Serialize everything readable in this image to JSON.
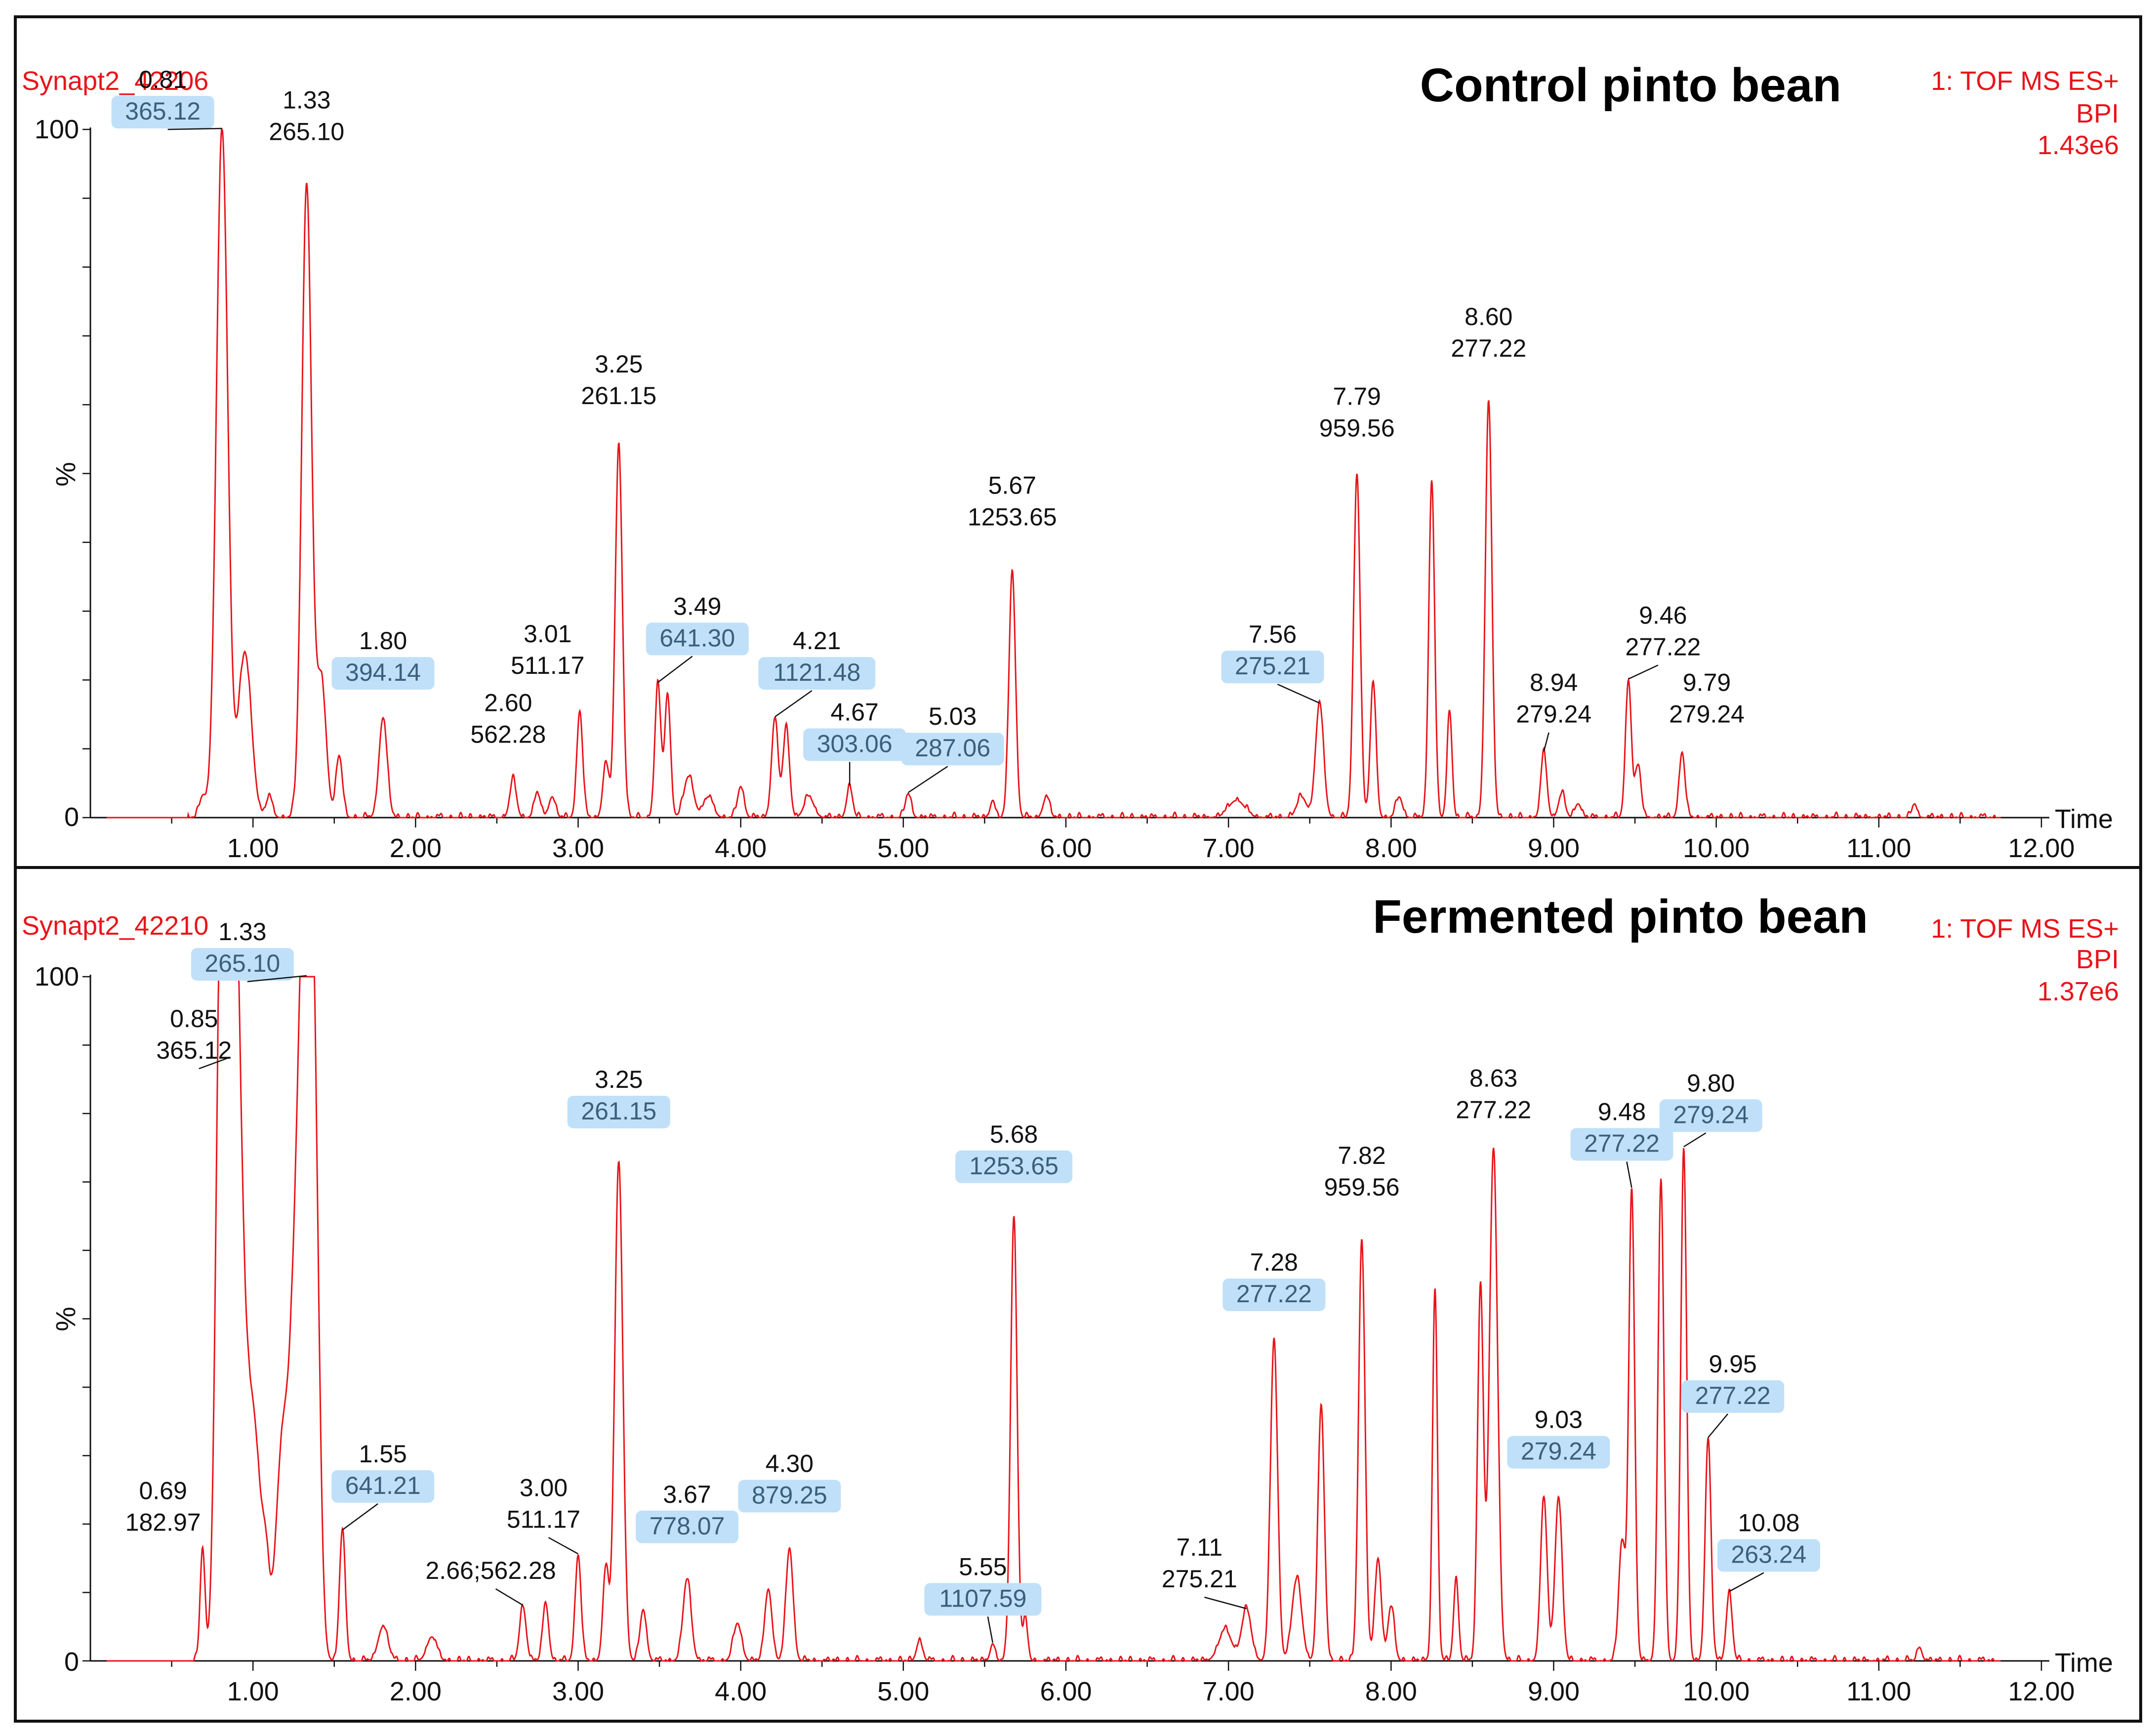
{
  "colors": {
    "trace": "#e8141b",
    "highlight": "#bfe0f8",
    "highlight_text": "#3b5f7c",
    "frame": "#111111"
  },
  "chart_data": [
    {
      "type": "line",
      "sample": "Synapt2_42206",
      "title": "Control pinto bean",
      "detector": "1: TOF MS ES+",
      "mode": "BPI",
      "intensity": "1.43e6",
      "xlabel": "Time",
      "ylabel": "%",
      "xlim": [
        0,
        12.0
      ],
      "ylim": [
        0,
        100
      ],
      "xticks": [
        "1.00",
        "2.00",
        "3.00",
        "4.00",
        "5.00",
        "6.00",
        "7.00",
        "8.00",
        "9.00",
        "10.00",
        "11.00",
        "12.00"
      ],
      "yticks": [
        "0",
        "100"
      ],
      "peaks": [
        {
          "rt": 0.81,
          "height": 100,
          "width": 0.035,
          "label": [
            "0.81",
            "365.12"
          ],
          "hl": true
        },
        {
          "rt": 1.33,
          "height": 92,
          "width": 0.03,
          "label": [
            "1.33",
            "265.10"
          ],
          "hl": false
        },
        {
          "rt": 1.8,
          "height": 14.5,
          "width": 0.025,
          "label": [
            "1.80",
            "394.14"
          ],
          "hl": true
        },
        {
          "rt": 2.6,
          "height": 5.5,
          "width": 0.02,
          "label": [
            "2.60",
            "562.28"
          ],
          "hl": false
        },
        {
          "rt": 3.01,
          "height": 15.5,
          "width": 0.018,
          "label": [
            "3.01",
            "511.17"
          ],
          "hl": false
        },
        {
          "rt": 3.25,
          "height": 54,
          "width": 0.022,
          "label": [
            "3.25",
            "261.15"
          ],
          "hl": false
        },
        {
          "rt": 3.49,
          "height": 19.5,
          "width": 0.018,
          "label": [
            "3.49",
            "641.30"
          ],
          "hl": true
        },
        {
          "rt": 4.21,
          "height": 14.5,
          "width": 0.02,
          "label": [
            "4.21",
            "1121.48"
          ],
          "hl": true
        },
        {
          "rt": 4.67,
          "height": 4.5,
          "width": 0.018,
          "label": [
            "4.67",
            "303.06"
          ],
          "hl": true
        },
        {
          "rt": 5.03,
          "height": 3.5,
          "width": 0.018,
          "label": [
            "5.03",
            "287.06"
          ],
          "hl": true
        },
        {
          "rt": 5.67,
          "height": 36,
          "width": 0.02,
          "label": [
            "5.67",
            "1253.65"
          ],
          "hl": false
        },
        {
          "rt": 7.56,
          "height": 16.5,
          "width": 0.025,
          "label": [
            "7.56",
            "275.21"
          ],
          "hl": true
        },
        {
          "rt": 7.79,
          "height": 50,
          "width": 0.02,
          "label": [
            "7.79",
            "959.56"
          ],
          "hl": false
        },
        {
          "rt": 8.6,
          "height": 60.5,
          "width": 0.02,
          "label": [
            "8.60",
            "277.22"
          ],
          "hl": false
        },
        {
          "rt": 8.94,
          "height": 9.5,
          "width": 0.018,
          "label": [
            "8.94",
            "279.24"
          ],
          "hl": false
        },
        {
          "rt": 9.46,
          "height": 20,
          "width": 0.018,
          "label": [
            "9.46",
            "277.22"
          ],
          "hl": false
        },
        {
          "rt": 9.79,
          "height": 9.5,
          "width": 0.018,
          "label": [
            "9.79",
            "279.24"
          ],
          "hl": false
        },
        {
          "rt": 0.69,
          "height": 3,
          "width": 0.02
        },
        {
          "rt": 0.95,
          "height": 24,
          "width": 0.04
        },
        {
          "rt": 1.1,
          "height": 3,
          "width": 0.02
        },
        {
          "rt": 1.42,
          "height": 20,
          "width": 0.03
        },
        {
          "rt": 1.53,
          "height": 9,
          "width": 0.02
        },
        {
          "rt": 2.75,
          "height": 3.5,
          "width": 0.02
        },
        {
          "rt": 2.84,
          "height": 3,
          "width": 0.02
        },
        {
          "rt": 3.17,
          "height": 8,
          "width": 0.018
        },
        {
          "rt": 3.55,
          "height": 18,
          "width": 0.018
        },
        {
          "rt": 3.68,
          "height": 6,
          "width": 0.03
        },
        {
          "rt": 3.8,
          "height": 3,
          "width": 0.03
        },
        {
          "rt": 4.0,
          "height": 4.5,
          "width": 0.02
        },
        {
          "rt": 4.28,
          "height": 13,
          "width": 0.02
        },
        {
          "rt": 4.42,
          "height": 3,
          "width": 0.03
        },
        {
          "rt": 5.55,
          "height": 2.5,
          "width": 0.015
        },
        {
          "rt": 5.88,
          "height": 3,
          "width": 0.02
        },
        {
          "rt": 7.05,
          "height": 2.5,
          "width": 0.05
        },
        {
          "rt": 7.45,
          "height": 3,
          "width": 0.03
        },
        {
          "rt": 7.89,
          "height": 19.5,
          "width": 0.018
        },
        {
          "rt": 8.05,
          "height": 3,
          "width": 0.02
        },
        {
          "rt": 8.25,
          "height": 49,
          "width": 0.018
        },
        {
          "rt": 8.36,
          "height": 15.5,
          "width": 0.015
        },
        {
          "rt": 9.05,
          "height": 3.5,
          "width": 0.02
        },
        {
          "rt": 9.15,
          "height": 2,
          "width": 0.02
        },
        {
          "rt": 9.52,
          "height": 7.5,
          "width": 0.018
        },
        {
          "rt": 11.22,
          "height": 2,
          "width": 0.015
        }
      ]
    },
    {
      "type": "line",
      "sample": "Synapt2_42210",
      "title": "Fermented pinto bean",
      "detector": "1: TOF MS ES+",
      "mode": "BPI",
      "intensity": "1.37e6",
      "xlabel": "Time",
      "ylabel": "%",
      "xlim": [
        0,
        12.0
      ],
      "ylim": [
        0,
        100
      ],
      "xticks": [
        "1.00",
        "2.00",
        "3.00",
        "4.00",
        "5.00",
        "6.00",
        "7.00",
        "8.00",
        "9.00",
        "10.00",
        "11.00",
        "12.00"
      ],
      "yticks": [
        "0",
        "100"
      ],
      "peaks": [
        {
          "rt": 0.69,
          "height": 16.5,
          "width": 0.015,
          "label": [
            "0.69",
            "182.97"
          ],
          "hl": false
        },
        {
          "rt": 0.85,
          "height": 88,
          "width": 0.04,
          "label": [
            "0.85",
            "365.12"
          ],
          "hl": false
        },
        {
          "rt": 1.33,
          "height": 100,
          "width": 0.035,
          "label": [
            "1.33",
            "265.10"
          ],
          "hl": true
        },
        {
          "rt": 1.55,
          "height": 19,
          "width": 0.018,
          "label": [
            "1.55",
            "641.21"
          ],
          "hl": true
        },
        {
          "rt": 2.66,
          "height": 8,
          "width": 0.02,
          "label": [
            "2.66;562.28"
          ],
          "hl": false
        },
        {
          "rt": 3.0,
          "height": 15.5,
          "width": 0.018,
          "label": [
            "3.00",
            "511.17"
          ],
          "hl": false
        },
        {
          "rt": 3.25,
          "height": 73,
          "width": 0.025,
          "label": [
            "3.25",
            "261.15"
          ],
          "hl": true
        },
        {
          "rt": 3.67,
          "height": 12,
          "width": 0.025,
          "label": [
            "3.67",
            "778.07"
          ],
          "hl": true
        },
        {
          "rt": 4.3,
          "height": 16.5,
          "width": 0.022,
          "label": [
            "4.30",
            "879.25"
          ],
          "hl": true
        },
        {
          "rt": 5.55,
          "height": 2.5,
          "width": 0.015,
          "label": [
            "5.55",
            "1107.59"
          ],
          "hl": true
        },
        {
          "rt": 5.68,
          "height": 65,
          "width": 0.02,
          "label": [
            "5.68",
            "1253.65"
          ],
          "hl": true
        },
        {
          "rt": 7.11,
          "height": 7.5,
          "width": 0.03,
          "label": [
            "7.11",
            "275.21"
          ],
          "hl": false
        },
        {
          "rt": 7.28,
          "height": 47,
          "width": 0.022,
          "label": [
            "7.28",
            "277.22"
          ],
          "hl": true
        },
        {
          "rt": 7.82,
          "height": 61.5,
          "width": 0.02,
          "label": [
            "7.82",
            "959.56"
          ],
          "hl": false
        },
        {
          "rt": 8.63,
          "height": 75,
          "width": 0.025,
          "label": [
            "8.63",
            "277.22"
          ],
          "hl": false
        },
        {
          "rt": 9.03,
          "height": 24,
          "width": 0.022,
          "label": [
            "9.03",
            "279.24"
          ],
          "hl": true
        },
        {
          "rt": 9.48,
          "height": 69,
          "width": 0.018,
          "label": [
            "9.48",
            "277.22"
          ],
          "hl": true
        },
        {
          "rt": 9.8,
          "height": 75,
          "width": 0.018,
          "label": [
            "9.80",
            "279.24"
          ],
          "hl": true
        },
        {
          "rt": 9.95,
          "height": 32.5,
          "width": 0.018,
          "label": [
            "9.95",
            "277.22"
          ],
          "hl": true
        },
        {
          "rt": 10.08,
          "height": 10,
          "width": 0.018,
          "label": [
            "10.08",
            "263.24"
          ],
          "hl": true
        },
        {
          "rt": 0.8,
          "height": 78,
          "width": 0.03
        },
        {
          "rt": 0.9,
          "height": 70,
          "width": 0.04
        },
        {
          "rt": 1.0,
          "height": 35,
          "width": 0.05
        },
        {
          "rt": 1.08,
          "height": 8,
          "width": 0.02
        },
        {
          "rt": 1.18,
          "height": 30,
          "width": 0.04
        },
        {
          "rt": 1.27,
          "height": 55,
          "width": 0.04
        },
        {
          "rt": 1.38,
          "height": 60,
          "width": 0.03
        },
        {
          "rt": 1.8,
          "height": 5,
          "width": 0.03
        },
        {
          "rt": 2.1,
          "height": 3.5,
          "width": 0.03
        },
        {
          "rt": 2.8,
          "height": 8.5,
          "width": 0.018
        },
        {
          "rt": 3.17,
          "height": 13.5,
          "width": 0.018
        },
        {
          "rt": 3.4,
          "height": 7.5,
          "width": 0.02
        },
        {
          "rt": 3.98,
          "height": 5.5,
          "width": 0.025
        },
        {
          "rt": 4.17,
          "height": 10.5,
          "width": 0.022
        },
        {
          "rt": 5.1,
          "height": 3,
          "width": 0.018
        },
        {
          "rt": 5.75,
          "height": 6,
          "width": 0.015
        },
        {
          "rt": 6.98,
          "height": 4.5,
          "width": 0.04
        },
        {
          "rt": 7.42,
          "height": 12,
          "width": 0.03
        },
        {
          "rt": 7.57,
          "height": 37,
          "width": 0.02
        },
        {
          "rt": 7.92,
          "height": 15,
          "width": 0.02
        },
        {
          "rt": 8.0,
          "height": 8,
          "width": 0.02
        },
        {
          "rt": 8.27,
          "height": 54.5,
          "width": 0.015
        },
        {
          "rt": 8.4,
          "height": 12,
          "width": 0.015
        },
        {
          "rt": 8.55,
          "height": 55,
          "width": 0.018
        },
        {
          "rt": 8.94,
          "height": 24,
          "width": 0.02
        },
        {
          "rt": 9.42,
          "height": 17.5,
          "width": 0.02
        },
        {
          "rt": 9.66,
          "height": 70.5,
          "width": 0.018
        },
        {
          "rt": 11.25,
          "height": 2,
          "width": 0.015
        }
      ]
    }
  ]
}
